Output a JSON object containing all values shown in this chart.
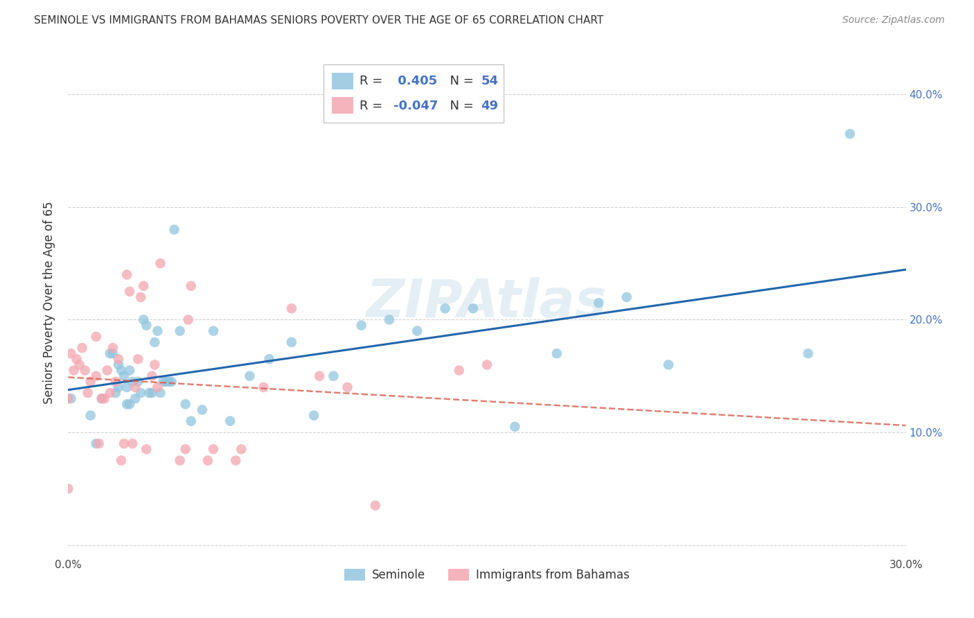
{
  "title": "SEMINOLE VS IMMIGRANTS FROM BAHAMAS SENIORS POVERTY OVER THE AGE OF 65 CORRELATION CHART",
  "source": "Source: ZipAtlas.com",
  "ylabel": "Seniors Poverty Over the Age of 65",
  "xlim": [
    0.0,
    0.3
  ],
  "ylim": [
    -0.01,
    0.44
  ],
  "x_ticks": [
    0.0,
    0.05,
    0.1,
    0.15,
    0.2,
    0.25,
    0.3
  ],
  "y_ticks": [
    0.0,
    0.1,
    0.2,
    0.3,
    0.4
  ],
  "y_tick_labels": [
    "",
    "10.0%",
    "20.0%",
    "30.0%",
    "40.0%"
  ],
  "seminole_color": "#92c5de",
  "bahamas_color": "#f4a6b0",
  "line_blue": "#2166ac",
  "line_pink": "#d6604d",
  "R_seminole": 0.405,
  "N_seminole": 54,
  "R_bahamas": -0.047,
  "N_bahamas": 49,
  "watermark": "ZIPAtlas",
  "seminole_x": [
    0.001,
    0.008,
    0.01,
    0.012,
    0.015,
    0.016,
    0.017,
    0.018,
    0.018,
    0.019,
    0.02,
    0.021,
    0.021,
    0.022,
    0.022,
    0.023,
    0.024,
    0.025,
    0.026,
    0.027,
    0.028,
    0.029,
    0.03,
    0.031,
    0.032,
    0.033,
    0.034,
    0.035,
    0.036,
    0.037,
    0.038,
    0.04,
    0.042,
    0.044,
    0.048,
    0.052,
    0.058,
    0.065,
    0.072,
    0.08,
    0.088,
    0.095,
    0.105,
    0.115,
    0.125,
    0.135,
    0.145,
    0.16,
    0.175,
    0.19,
    0.2,
    0.215,
    0.265,
    0.28
  ],
  "seminole_y": [
    0.13,
    0.115,
    0.09,
    0.13,
    0.17,
    0.17,
    0.135,
    0.14,
    0.16,
    0.155,
    0.15,
    0.14,
    0.125,
    0.155,
    0.125,
    0.145,
    0.13,
    0.145,
    0.135,
    0.2,
    0.195,
    0.135,
    0.135,
    0.18,
    0.19,
    0.135,
    0.145,
    0.145,
    0.145,
    0.145,
    0.28,
    0.19,
    0.125,
    0.11,
    0.12,
    0.19,
    0.11,
    0.15,
    0.165,
    0.18,
    0.115,
    0.15,
    0.195,
    0.2,
    0.19,
    0.21,
    0.21,
    0.105,
    0.17,
    0.215,
    0.22,
    0.16,
    0.17,
    0.365
  ],
  "bahamas_x": [
    0.0,
    0.0,
    0.001,
    0.002,
    0.003,
    0.004,
    0.005,
    0.006,
    0.007,
    0.008,
    0.01,
    0.01,
    0.011,
    0.012,
    0.013,
    0.014,
    0.015,
    0.016,
    0.017,
    0.018,
    0.019,
    0.02,
    0.021,
    0.022,
    0.023,
    0.024,
    0.025,
    0.026,
    0.027,
    0.028,
    0.03,
    0.031,
    0.032,
    0.033,
    0.04,
    0.042,
    0.043,
    0.044,
    0.05,
    0.052,
    0.06,
    0.062,
    0.07,
    0.08,
    0.09,
    0.1,
    0.11,
    0.14,
    0.15
  ],
  "bahamas_y": [
    0.13,
    0.05,
    0.17,
    0.155,
    0.165,
    0.16,
    0.175,
    0.155,
    0.135,
    0.145,
    0.185,
    0.15,
    0.09,
    0.13,
    0.13,
    0.155,
    0.135,
    0.175,
    0.145,
    0.165,
    0.075,
    0.09,
    0.24,
    0.225,
    0.09,
    0.14,
    0.165,
    0.22,
    0.23,
    0.085,
    0.15,
    0.16,
    0.14,
    0.25,
    0.075,
    0.085,
    0.2,
    0.23,
    0.075,
    0.085,
    0.075,
    0.085,
    0.14,
    0.21,
    0.15,
    0.14,
    0.035,
    0.155,
    0.16
  ]
}
